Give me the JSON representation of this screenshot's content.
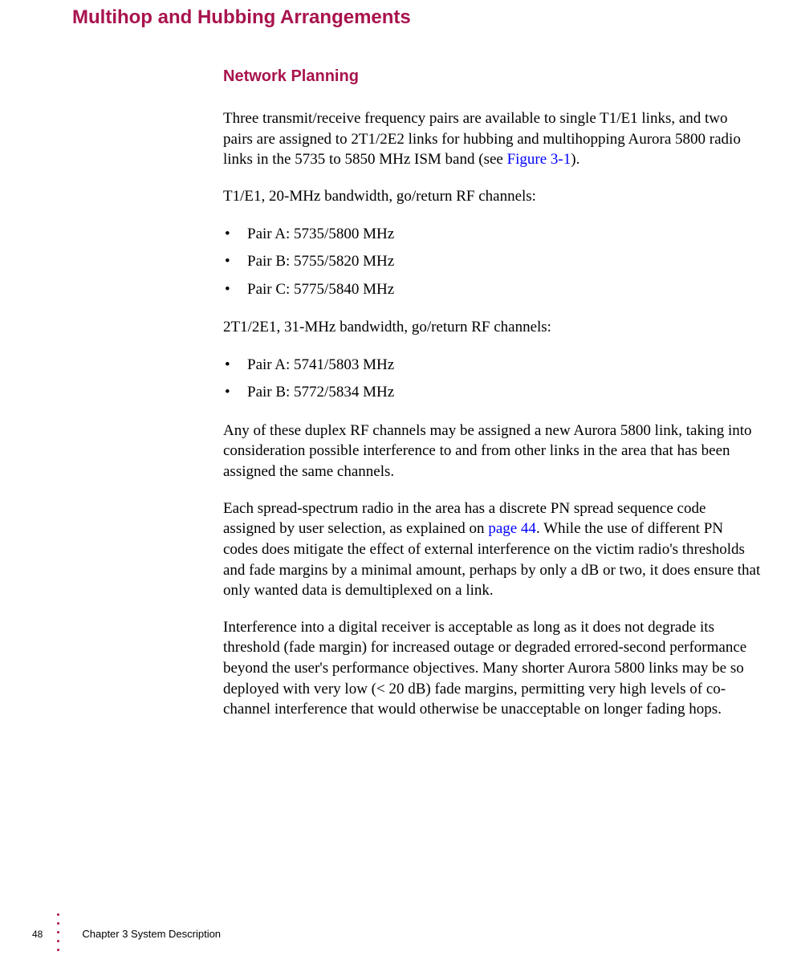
{
  "colors": {
    "heading": "#a8134e",
    "link": "#0000ff",
    "body_text": "#000000",
    "background": "#ffffff",
    "dot": "#a8134e"
  },
  "typography": {
    "heading_family": "Arial, Helvetica, sans-serif",
    "body_family": "Georgia, 'Times New Roman', serif",
    "section_title_size": 24,
    "sub_title_size": 20,
    "body_size": 19,
    "footer_size": 13,
    "page_num_size": 12
  },
  "section_title": "Multihop and Hubbing Arrangements",
  "sub_title": "Network Planning",
  "para1_part1": "Three transmit/receive frequency pairs are available to single T1/E1 links, and two pairs are assigned to 2T1/2E2 links for hubbing and multihopping Aurora 5800 radio links in the 5735 to 5850 MHz ISM band (see ",
  "para1_link": "Figure 3-1",
  "para1_part2": ").",
  "para2": "T1/E1, 20-MHz bandwidth, go/return RF channels:",
  "list1": {
    "item1": "Pair A: 5735/5800 MHz",
    "item2": "Pair B: 5755/5820 MHz",
    "item3": "Pair C: 5775/5840 MHz"
  },
  "para3": "2T1/2E1, 31-MHz bandwidth, go/return RF channels:",
  "list2": {
    "item1": "Pair A: 5741/5803 MHz",
    "item2": "Pair B: 5772/5834 MHz"
  },
  "para4": "Any of these duplex RF channels may be assigned a new Aurora 5800 link, taking into consideration possible interference to and from other links in the area that has been assigned the same channels.",
  "para5_part1": "Each spread-spectrum radio in the area has a discrete PN spread sequence code assigned by user selection, as explained on ",
  "para5_link": "page 44",
  "para5_part2": ". While the use of different PN codes does mitigate the effect of external interference on the victim radio's thresholds and fade margins by a minimal amount, perhaps by only a dB or two, it does ensure that only wanted data is demultiplexed on a link.",
  "para6": "Interference into a digital receiver is acceptable as long as it does not degrade its threshold (fade margin) for increased outage or degraded errored-second performance beyond the user's performance objectives. Many shorter Aurora 5800 links may be so deployed with very low (< 20 dB) fade margins, permitting very high levels of co-channel interference that would otherwise be unacceptable on longer fading hops.",
  "footer": {
    "page_number": "48",
    "chapter_label": "Chapter 3   System Description",
    "dot_count": 5
  }
}
